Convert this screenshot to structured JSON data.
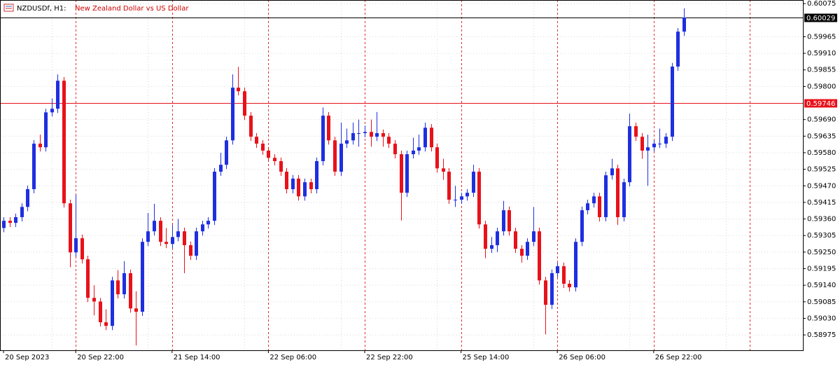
{
  "chart_data": {
    "type": "candlestick",
    "title": "NZDUSDf, H1:",
    "subtitle": "New Zealand Dollar vs US Dollar",
    "up_color": "#1f2fe0",
    "down_color": "#e8121a",
    "grid": true,
    "period_separators": true,
    "ylim": [
      0.58924,
      0.60087
    ],
    "yticks": [
      0.60075,
      0.59965,
      {
        "value": 0.5991,
        "label": "0.59910"
      },
      0.59855,
      {
        "value": 0.598,
        "label": "0.59800"
      },
      {
        "value": 0.5969,
        "label": "0.59690"
      },
      0.59635,
      {
        "value": 0.5958,
        "label": "0.59580"
      },
      0.59525,
      {
        "value": 0.5947,
        "label": "0.59470"
      },
      0.59415,
      {
        "value": 0.5936,
        "label": "0.59360"
      },
      0.59305,
      {
        "value": 0.5925,
        "label": "0.59250"
      },
      0.59195,
      {
        "value": 0.5914,
        "label": "0.59140"
      },
      0.59085,
      {
        "value": 0.5903,
        "label": "0.59030"
      },
      0.58975
    ],
    "price_lines": [
      {
        "value": 0.60029,
        "color": "#000000"
      },
      {
        "value": 0.59746,
        "color": "#e8121a"
      }
    ],
    "categories": [
      "20 Sep 2023",
      null,
      null,
      null,
      null,
      null,
      null,
      null,
      null,
      null,
      null,
      null,
      "20 Sep 22:00",
      null,
      null,
      null,
      null,
      null,
      null,
      null,
      null,
      null,
      null,
      null,
      null,
      null,
      null,
      null,
      "21 Sep 14:00",
      null,
      null,
      null,
      null,
      null,
      null,
      null,
      null,
      null,
      null,
      null,
      null,
      null,
      null,
      null,
      "22 Sep 06:00",
      null,
      null,
      null,
      null,
      null,
      null,
      null,
      null,
      null,
      null,
      null,
      null,
      null,
      null,
      null,
      "22 Sep 22:00",
      null,
      null,
      null,
      null,
      null,
      null,
      null,
      null,
      null,
      null,
      null,
      null,
      null,
      null,
      null,
      "25 Sep 14:00",
      null,
      null,
      null,
      null,
      null,
      null,
      null,
      null,
      null,
      null,
      null,
      null,
      null,
      null,
      null,
      "26 Sep 06:00",
      null,
      null,
      null,
      null,
      null,
      null,
      null,
      null,
      null,
      null,
      null,
      null,
      null,
      null,
      null,
      "26 Sep 22:00",
      null,
      null,
      null,
      null,
      null
    ],
    "open": [
      0.5933,
      0.59354,
      0.59347,
      0.59366,
      0.594,
      0.59459,
      0.5961,
      0.59598,
      0.59714,
      0.59726,
      0.59819,
      0.59412,
      0.59249,
      0.59296,
      0.59226,
      0.59098,
      0.59086,
      0.59017,
      0.59005,
      0.59156,
      0.5911,
      0.5918,
      0.59063,
      0.59052,
      0.59284,
      0.59319,
      0.59354,
      0.59284,
      0.59277,
      0.593,
      0.59319,
      0.59273,
      0.59238,
      0.59319,
      0.59342,
      0.59354,
      0.59517,
      0.5954,
      0.59621,
      0.59796,
      0.59784,
      0.59703,
      0.59633,
      0.5961,
      0.59587,
      0.59563,
      0.59552,
      0.59517,
      0.59459,
      0.59494,
      0.59435,
      0.59482,
      0.59459,
      0.59552,
      0.59703,
      0.59621,
      0.59517,
      0.5961,
      0.59621,
      0.59645,
      0.59645,
      0.59649,
      0.59633,
      0.59645,
      0.59633,
      0.5961,
      0.59575,
      0.59447,
      0.59575,
      0.59587,
      0.59598,
      0.59663,
      0.59598,
      0.59528,
      0.59517,
      0.59424,
      0.59424,
      0.59435,
      0.59447,
      0.59517,
      0.59342,
      0.59261,
      0.59273,
      0.59319,
      0.59389,
      0.59319,
      0.59261,
      0.59238,
      0.59284,
      0.59319,
      0.59156,
      0.59075,
      0.5918,
      0.59203,
      0.59145,
      0.59133,
      0.59284,
      0.59389,
      0.59412,
      0.59435,
      0.59366,
      0.59505,
      0.59528,
      0.59366,
      0.59482,
      0.59668,
      0.59633,
      0.59587,
      0.59598,
      0.5961,
      0.5961,
      0.59633,
      0.59866,
      0.59982
    ],
    "high": [
      0.59366,
      0.59366,
      0.59378,
      0.59412,
      0.59471,
      0.59622,
      0.5964,
      0.59726,
      0.5976,
      0.5984,
      0.59831,
      0.59424,
      0.5944,
      0.59308,
      0.59238,
      0.5914,
      0.59098,
      0.5906,
      0.59168,
      0.5919,
      0.5922,
      0.59192,
      0.5912,
      0.59296,
      0.5938,
      0.5941,
      0.59366,
      0.5933,
      0.5934,
      0.5936,
      0.59331,
      0.59285,
      0.59331,
      0.59354,
      0.59366,
      0.59529,
      0.5958,
      0.59633,
      0.5984,
      0.59865,
      0.59796,
      0.59715,
      0.59645,
      0.59622,
      0.59599,
      0.59575,
      0.59564,
      0.59529,
      0.59506,
      0.59506,
      0.59494,
      0.59494,
      0.59564,
      0.5973,
      0.59715,
      0.59633,
      0.5968,
      0.5966,
      0.5968,
      0.5969,
      0.5967,
      0.5969,
      0.59715,
      0.59657,
      0.59645,
      0.59622,
      0.59587,
      0.59587,
      0.5963,
      0.5964,
      0.5968,
      0.59675,
      0.5961,
      0.5956,
      0.59529,
      0.5947,
      0.59447,
      0.59459,
      0.5954,
      0.59529,
      0.59354,
      0.593,
      0.59331,
      0.5942,
      0.59401,
      0.59331,
      0.59273,
      0.59296,
      0.594,
      0.59331,
      0.59168,
      0.59192,
      0.59215,
      0.59215,
      0.59157,
      0.59296,
      0.59401,
      0.59424,
      0.59447,
      0.59447,
      0.59517,
      0.5956,
      0.5954,
      0.59494,
      0.5971,
      0.5968,
      0.59645,
      0.5964,
      0.59622,
      0.5966,
      0.59645,
      0.59878,
      0.59994,
      0.60059
    ],
    "low": [
      0.59316,
      0.59333,
      0.59333,
      0.59352,
      0.59386,
      0.59445,
      0.59584,
      0.59584,
      0.597,
      0.59712,
      0.59398,
      0.592,
      0.59235,
      0.59212,
      0.59084,
      0.5904,
      0.59003,
      0.58991,
      0.58991,
      0.59096,
      0.59096,
      0.59049,
      0.5894,
      0.59038,
      0.5927,
      0.59305,
      0.5927,
      0.59263,
      0.59263,
      0.59286,
      0.5918,
      0.59224,
      0.59224,
      0.59305,
      0.59328,
      0.5934,
      0.59503,
      0.59526,
      0.59607,
      0.5977,
      0.59689,
      0.59619,
      0.59596,
      0.59573,
      0.59549,
      0.59538,
      0.59503,
      0.59445,
      0.59445,
      0.59421,
      0.59421,
      0.59445,
      0.59445,
      0.59538,
      0.59607,
      0.59503,
      0.59503,
      0.59596,
      0.59607,
      0.596,
      0.59631,
      0.596,
      0.59619,
      0.596,
      0.59596,
      0.59561,
      0.59355,
      0.59433,
      0.59561,
      0.59573,
      0.59584,
      0.59584,
      0.59514,
      0.5949,
      0.5941,
      0.594,
      0.5941,
      0.59421,
      0.59433,
      0.59328,
      0.5923,
      0.59247,
      0.5925,
      0.59305,
      0.59305,
      0.59247,
      0.59215,
      0.59224,
      0.5927,
      0.59142,
      0.58977,
      0.59061,
      0.59166,
      0.59131,
      0.59119,
      0.59119,
      0.5927,
      0.59375,
      0.59398,
      0.59352,
      0.59352,
      0.59491,
      0.5934,
      0.59352,
      0.59468,
      0.59619,
      0.5956,
      0.5947,
      0.59584,
      0.59596,
      0.59596,
      0.59619,
      0.59852,
      0.59968
    ],
    "close": [
      0.59354,
      0.59347,
      0.59366,
      0.594,
      0.59459,
      0.5961,
      0.59598,
      0.59714,
      0.59726,
      0.59819,
      0.59412,
      0.59249,
      0.59296,
      0.59226,
      0.59098,
      0.59086,
      0.59017,
      0.59005,
      0.59156,
      0.5911,
      0.5918,
      0.59063,
      0.59052,
      0.59284,
      0.59319,
      0.59354,
      0.59284,
      0.59277,
      0.593,
      0.59319,
      0.59273,
      0.59238,
      0.59319,
      0.59342,
      0.59354,
      0.59517,
      0.5954,
      0.59621,
      0.59796,
      0.59784,
      0.59703,
      0.59633,
      0.5961,
      0.59587,
      0.59563,
      0.59552,
      0.59517,
      0.59459,
      0.59494,
      0.59435,
      0.59482,
      0.59459,
      0.59552,
      0.59703,
      0.59621,
      0.59517,
      0.5961,
      0.59621,
      0.59645,
      0.59645,
      0.59649,
      0.59633,
      0.59645,
      0.59633,
      0.5961,
      0.59575,
      0.59447,
      0.59575,
      0.59587,
      0.59598,
      0.59663,
      0.59598,
      0.59528,
      0.59517,
      0.59424,
      0.59424,
      0.59435,
      0.59447,
      0.59517,
      0.59342,
      0.59261,
      0.59273,
      0.59319,
      0.59389,
      0.59319,
      0.59261,
      0.59238,
      0.59284,
      0.59319,
      0.59156,
      0.59075,
      0.5918,
      0.59203,
      0.59145,
      0.59133,
      0.59284,
      0.59389,
      0.59412,
      0.59435,
      0.59366,
      0.59505,
      0.59528,
      0.59366,
      0.59482,
      0.59668,
      0.59633,
      0.59587,
      0.59598,
      0.5961,
      0.5961,
      0.59633,
      0.59866,
      0.59982,
      0.60029
    ]
  }
}
